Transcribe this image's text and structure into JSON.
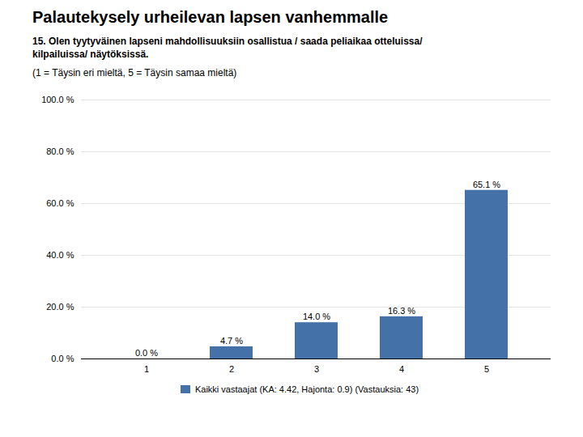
{
  "chart_data": {
    "type": "bar",
    "title": "Palautekysely urheilevan lapsen vanhemmalle",
    "subtitle": "15. Olen tyytyväinen lapseni mahdollisuuksiin osallistua / saada peliaikaa otteluissa/\nkilpailuissa/ näytöksissä.",
    "annotations": [
      "(1 = Täysin eri mieltä, 5 = Täysin samaa mieltä)"
    ],
    "categories": [
      1,
      2,
      3,
      4,
      5
    ],
    "series": [
      {
        "name": "Kaikki vastaajat (KA: 4.42, Hajonta: 0.9) (Vastauksia: 43)",
        "color": "#4472a8",
        "values": [
          0.0,
          4.7,
          14.0,
          16.3,
          65.1
        ],
        "value_labels": [
          "0.0 %",
          "4.7 %",
          "14.0 %",
          "16.3 %",
          "65.1 %"
        ]
      }
    ],
    "ylim": [
      0,
      100
    ],
    "yticks": [
      {
        "value": 0,
        "label": "0.0 %"
      },
      {
        "value": 20,
        "label": "20.0 %"
      },
      {
        "value": 40,
        "label": "40.0 %"
      },
      {
        "value": 60,
        "label": "60.0 %"
      },
      {
        "value": 80,
        "label": "80.0 %"
      },
      {
        "value": 100,
        "label": "100.0 %"
      }
    ],
    "grid": true,
    "data_labels": true,
    "legend": "bottom"
  }
}
